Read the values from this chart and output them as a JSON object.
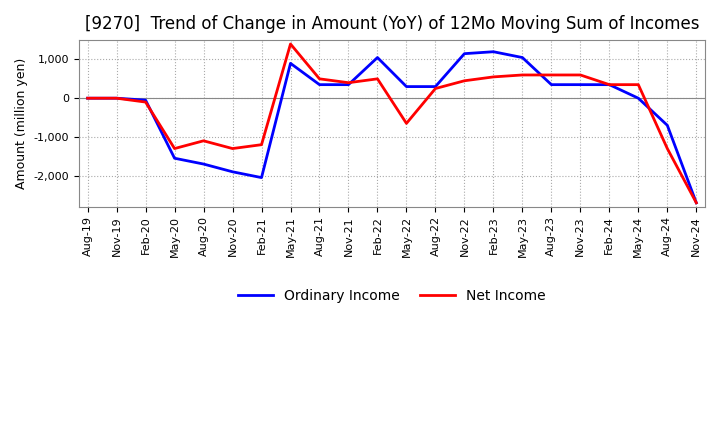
{
  "title": "[9270]  Trend of Change in Amount (YoY) of 12Mo Moving Sum of Incomes",
  "ylabel": "Amount (million yen)",
  "x_labels": [
    "Aug-19",
    "Nov-19",
    "Feb-20",
    "May-20",
    "Aug-20",
    "Nov-20",
    "Feb-21",
    "May-21",
    "Aug-21",
    "Nov-21",
    "Feb-22",
    "May-22",
    "Aug-22",
    "Nov-22",
    "Feb-23",
    "May-23",
    "Aug-23",
    "Nov-23",
    "Feb-24",
    "May-24",
    "Aug-24",
    "Nov-24"
  ],
  "ordinary_income": [
    0,
    0,
    -50,
    -1550,
    -1700,
    -1900,
    -2050,
    900,
    350,
    350,
    1050,
    300,
    300,
    1150,
    1200,
    1050,
    350,
    350,
    350,
    0,
    -700,
    -2700
  ],
  "net_income": [
    0,
    0,
    -100,
    -1300,
    -1100,
    -1300,
    -1200,
    1400,
    500,
    400,
    500,
    -650,
    250,
    450,
    550,
    600,
    600,
    600,
    350,
    350,
    -1300,
    -2700
  ],
  "ordinary_income_color": "#0000FF",
  "net_income_color": "#FF0000",
  "background_color": "#FFFFFF",
  "grid_color": "#AAAAAA",
  "ylim": [
    -2800,
    1500
  ],
  "yticks": [
    -2000,
    -1000,
    0,
    1000
  ],
  "title_fontsize": 12,
  "axis_fontsize": 9,
  "tick_fontsize": 8,
  "legend_fontsize": 10
}
